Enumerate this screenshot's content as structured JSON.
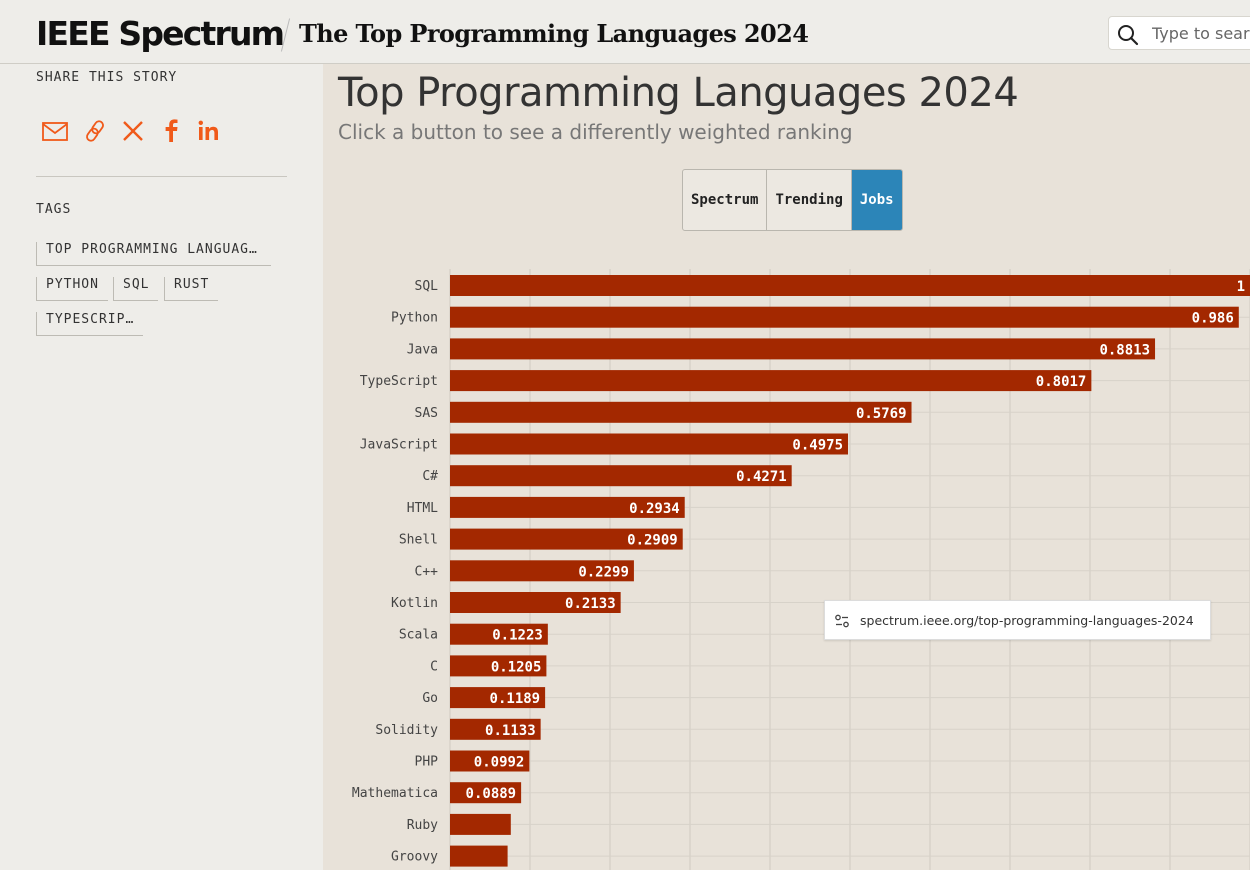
{
  "header": {
    "logo": "IEEE Spectrum",
    "title": "The Top Programming Languages 2024",
    "search_placeholder": "Type to search"
  },
  "sidebar": {
    "share_label": "SHARE THIS STORY",
    "share_icons": [
      "email-icon",
      "link-icon",
      "x-icon",
      "facebook-icon",
      "linkedin-icon"
    ],
    "tags_label": "TAGS",
    "tags": [
      "TOP PROGRAMMING LANGUAG…",
      "PYTHON",
      "SQL",
      "RUST",
      "TYPESCRIPT"
    ]
  },
  "main": {
    "title": "Top Programming Languages 2024",
    "subtitle": "Click a button to see a differently weighted ranking",
    "buttons": [
      "Spectrum",
      "Trending",
      "Jobs"
    ],
    "active_button": "Jobs"
  },
  "url_tooltip": "spectrum.ieee.org/top-programming-languages-2024",
  "colors": {
    "bar": "#a32800",
    "active_button": "#2c85b8",
    "accent_icons": "#f05a1a"
  },
  "chart_data": {
    "type": "bar",
    "orientation": "horizontal",
    "categories": [
      "SQL",
      "Python",
      "Java",
      "TypeScript",
      "SAS",
      "JavaScript",
      "C#",
      "HTML",
      "Shell",
      "C++",
      "Kotlin",
      "Scala",
      "C",
      "Go",
      "Solidity",
      "PHP",
      "Mathematica",
      "Ruby",
      "Groovy"
    ],
    "values": [
      1,
      0.986,
      0.8813,
      0.8017,
      0.5769,
      0.4975,
      0.4271,
      0.2934,
      0.2909,
      0.2299,
      0.2133,
      0.1223,
      0.1205,
      0.1189,
      0.1133,
      0.0992,
      0.0889,
      0.076,
      0.072
    ],
    "value_labels": [
      "1",
      "0.986",
      "0.8813",
      "0.8017",
      "0.5769",
      "0.4975",
      "0.4271",
      "0.2934",
      "0.2909",
      "0.2299",
      "0.2133",
      "0.1223",
      "0.1205",
      "0.1189",
      "0.1133",
      "0.0992",
      "0.0889",
      "",
      ""
    ],
    "xlim": [
      0,
      1
    ],
    "grid": true
  }
}
